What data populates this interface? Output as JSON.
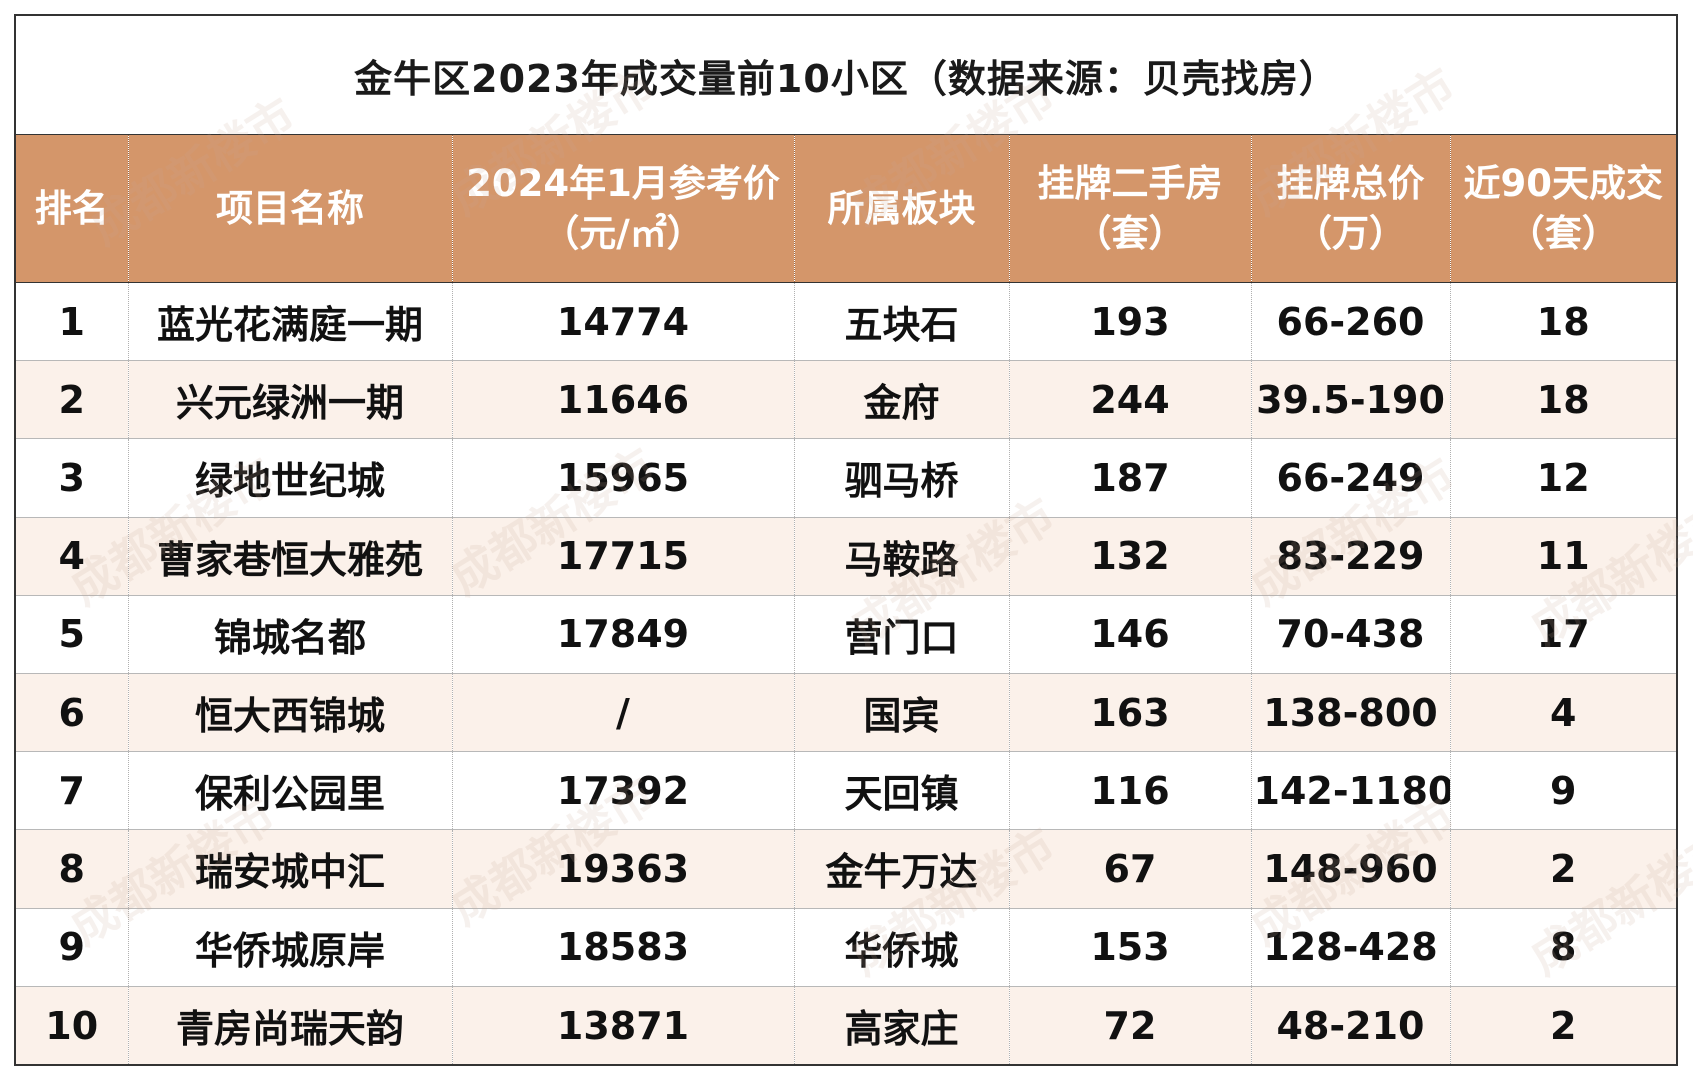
{
  "chart_data": {
    "type": "table",
    "title": "金牛区2023年成交量前10小区（数据来源：贝壳找房）",
    "columns": [
      {
        "label": "排名",
        "unit": ""
      },
      {
        "label": "项目名称",
        "unit": ""
      },
      {
        "label": "2024年1月参考价",
        "unit": "（元/㎡）"
      },
      {
        "label": "所属板块",
        "unit": ""
      },
      {
        "label": "挂牌二手房",
        "unit": "（套）"
      },
      {
        "label": "挂牌总价",
        "unit": "（万）"
      },
      {
        "label": "近90天成交",
        "unit": "（套）"
      }
    ],
    "rows": [
      [
        "1",
        "蓝光花满庭一期",
        "14774",
        "五块石",
        "193",
        "66-260",
        "18"
      ],
      [
        "2",
        "兴元绿洲一期",
        "11646",
        "金府",
        "244",
        "39.5-190",
        "18"
      ],
      [
        "3",
        "绿地世纪城",
        "15965",
        "驷马桥",
        "187",
        "66-249",
        "12"
      ],
      [
        "4",
        "曹家巷恒大雅苑",
        "17715",
        "马鞍路",
        "132",
        "83-229",
        "11"
      ],
      [
        "5",
        "锦城名都",
        "17849",
        "营门口",
        "146",
        "70-438",
        "17"
      ],
      [
        "6",
        "恒大西锦城",
        "/",
        "国宾",
        "163",
        "138-800",
        "4"
      ],
      [
        "7",
        "保利公园里",
        "17392",
        "天回镇",
        "116",
        "142-1180",
        "9"
      ],
      [
        "8",
        "瑞安城中汇",
        "19363",
        "金牛万达",
        "67",
        "148-960",
        "2"
      ],
      [
        "9",
        "华侨城原岸",
        "18583",
        "华侨城",
        "153",
        "128-428",
        "8"
      ],
      [
        "10",
        "青房尚瑞天韵",
        "13871",
        "高家庄",
        "72",
        "48-210",
        "2"
      ]
    ]
  },
  "watermark": "成都新楼市",
  "colors": {
    "header_bg": "#d4966a",
    "header_text": "#ffffff",
    "row_alt_bg": "#fbf1ea",
    "text": "#111111"
  }
}
